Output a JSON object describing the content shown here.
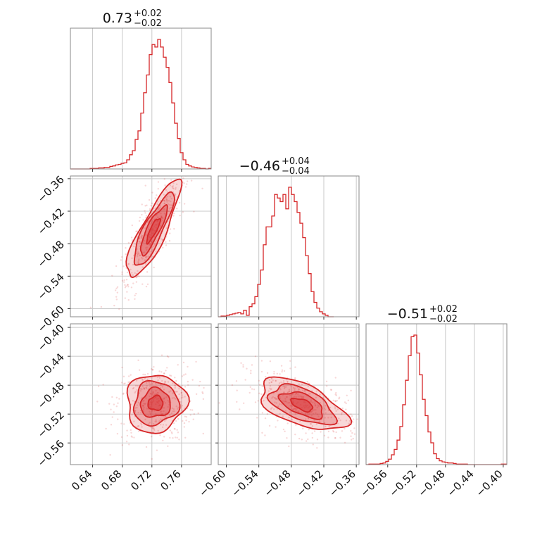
{
  "chart_data": {
    "type": "corner",
    "color": "#d62728",
    "grid": true,
    "parameters": [
      {
        "title_value": "0.73",
        "title_plus": "+0.02",
        "title_minus": "−0.02",
        "range": [
          0.61,
          0.8
        ],
        "ticks": [
          0.64,
          0.68,
          0.72,
          0.76
        ],
        "tick_labels": [
          "0.64",
          "0.68",
          "0.72",
          "0.76"
        ]
      },
      {
        "title_value": "−0.46",
        "title_plus": "+0.04",
        "title_minus": "−0.04",
        "range": [
          -0.615,
          -0.355
        ],
        "ticks": [
          -0.6,
          -0.54,
          -0.48,
          -0.42,
          -0.36
        ],
        "tick_labels": [
          "−0.60",
          "−0.54",
          "−0.48",
          "−0.42",
          "−0.36"
        ]
      },
      {
        "title_value": "−0.51",
        "title_plus": "+0.02",
        "title_minus": "−0.02",
        "range": [
          -0.59,
          -0.395
        ],
        "ticks": [
          -0.56,
          -0.52,
          -0.48,
          -0.44,
          -0.4
        ],
        "tick_labels": [
          "−0.56",
          "−0.52",
          "−0.48",
          "−0.44",
          "−0.40"
        ]
      }
    ],
    "histograms": [
      {
        "bin_edges_from": 0.61,
        "bin_width": 0.0038,
        "counts": [
          0,
          0,
          0,
          0,
          0,
          0,
          0,
          1,
          1,
          1,
          2,
          2,
          3,
          3,
          5,
          6,
          8,
          9,
          11,
          12,
          18,
          28,
          36,
          58,
          75,
          110,
          150,
          185,
          225,
          245,
          240,
          255,
          240,
          220,
          200,
          170,
          130,
          90,
          60,
          32,
          18,
          9,
          6,
          4,
          3,
          2,
          1,
          1,
          0,
          1
        ]
      },
      {
        "bin_edges_from": -0.615,
        "bin_width": 0.0052,
        "counts": [
          0,
          1,
          1,
          2,
          3,
          4,
          5,
          6,
          4,
          9,
          2,
          14,
          18,
          28,
          45,
          65,
          100,
          125,
          125,
          140,
          170,
          165,
          160,
          170,
          150,
          180,
          170,
          160,
          145,
          130,
          110,
          85,
          60,
          35,
          20,
          12,
          7,
          4,
          2,
          0,
          0
        ]
      },
      {
        "bin_edges_from": -0.59,
        "bin_width": 0.0039,
        "counts": [
          0,
          1,
          1,
          1,
          1,
          2,
          3,
          6,
          10,
          18,
          28,
          45,
          70,
          110,
          155,
          200,
          235,
          238,
          205,
          165,
          120,
          90,
          60,
          40,
          20,
          11,
          7,
          5,
          4,
          3,
          3,
          2,
          1,
          1,
          1,
          1,
          0,
          0,
          0,
          0,
          0,
          0,
          0,
          0,
          0,
          0,
          0,
          0,
          1,
          1
        ]
      }
    ],
    "joint": [
      {
        "x_param": 0,
        "y_param": 1,
        "center": [
          0.722,
          -0.455
        ],
        "sigma": [
          0.018,
          0.045
        ],
        "correlation": 0.85
      },
      {
        "x_param": 0,
        "y_param": 2,
        "center": [
          0.725,
          -0.505
        ],
        "sigma": [
          0.02,
          0.02
        ],
        "correlation": 0.05
      },
      {
        "x_param": 1,
        "y_param": 2,
        "center": [
          -0.46,
          -0.507
        ],
        "sigma": [
          0.04,
          0.018
        ],
        "correlation": -0.55
      }
    ],
    "contour_levels_sigma": [
      0.5,
      1.0,
      1.5,
      2.0
    ]
  }
}
